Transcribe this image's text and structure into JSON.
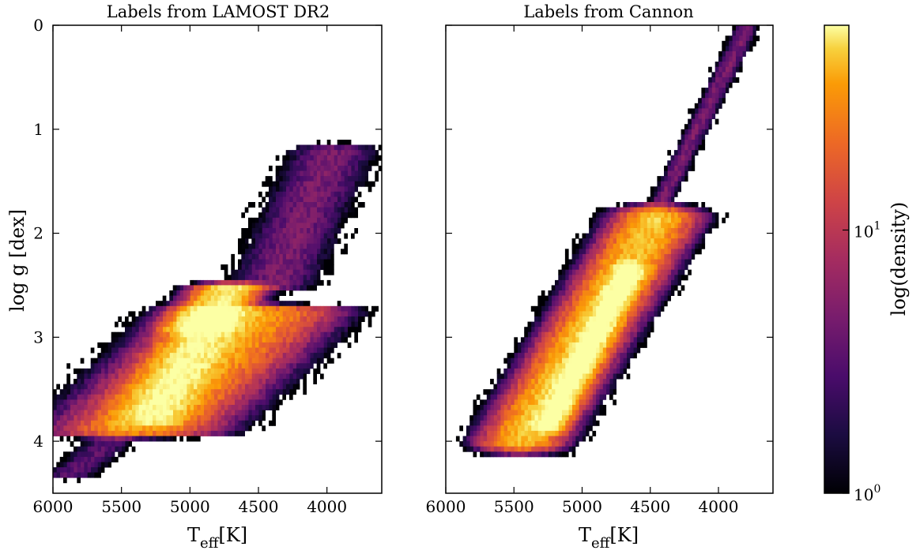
{
  "chart_data": [
    {
      "type": "heatmap",
      "title": "Labels from LAMOST DR2",
      "xlabel": "T",
      "xlabel_sub": "eff",
      "xlabel_unit": "[K]",
      "ylabel": "log g [dex]",
      "xlim": [
        6000,
        3600
      ],
      "ylim": [
        4.5,
        0
      ],
      "xticks": [
        "6000",
        "5500",
        "5000",
        "4500",
        "4000"
      ],
      "xtick_values": [
        6000,
        5500,
        5000,
        4500,
        4000
      ],
      "yticks": [
        "0",
        "1",
        "2",
        "3",
        "4"
      ],
      "ytick_values": [
        0,
        1,
        2,
        3,
        4
      ],
      "distribution": {
        "components": [
          {
            "teff": [
              5900,
              5450
            ],
            "logg": [
              4.35,
              3.85
            ],
            "width_k": 120,
            "peak_count": 3
          },
          {
            "teff": [
              5400,
              4500
            ],
            "logg": [
              3.9,
              2.75
            ],
            "width_k": 330,
            "peak_count": 25
          },
          {
            "teff": [
              5300,
              4800
            ],
            "logg": [
              3.8,
              2.75
            ],
            "width_k": 150,
            "peak_count": 40
          },
          {
            "teff": [
              4950,
              4700
            ],
            "logg": [
              2.95,
              2.5
            ],
            "width_k": 140,
            "peak_count": 50
          },
          {
            "teff": [
              4400,
              3950
            ],
            "logg": [
              2.5,
              1.2
            ],
            "width_k": 200,
            "peak_count": 4
          }
        ]
      }
    },
    {
      "type": "heatmap",
      "title": "Labels from Cannon",
      "xlabel": "T",
      "xlabel_sub": "eff",
      "xlabel_unit": "[K]",
      "ylabel": "",
      "xlim": [
        6000,
        3600
      ],
      "ylim": [
        4.5,
        0
      ],
      "xticks": [
        "6000",
        "5500",
        "5000",
        "4500",
        "4000"
      ],
      "xtick_values": [
        6000,
        5500,
        5000,
        4500,
        4000
      ],
      "yticks": [],
      "distribution": {
        "components": [
          {
            "teff": [
              5450,
              4450
            ],
            "logg": [
              4.0,
              1.85
            ],
            "width_k": 170,
            "peak_count": 35
          },
          {
            "teff": [
              5250,
              4650
            ],
            "logg": [
              3.85,
              2.35
            ],
            "width_k": 70,
            "peak_count": 60
          },
          {
            "teff": [
              4500,
              3800
            ],
            "logg": [
              1.9,
              0.05
            ],
            "width_k": 55,
            "peak_count": 4
          }
        ]
      }
    }
  ],
  "colorbar": {
    "label": "log(density)",
    "scale": "log",
    "colormap": "inferno",
    "ticks": [
      {
        "base": "10",
        "exp": "0",
        "value": 1
      },
      {
        "base": "10",
        "exp": "1",
        "value": 10
      }
    ],
    "range": [
      1,
      60
    ]
  }
}
